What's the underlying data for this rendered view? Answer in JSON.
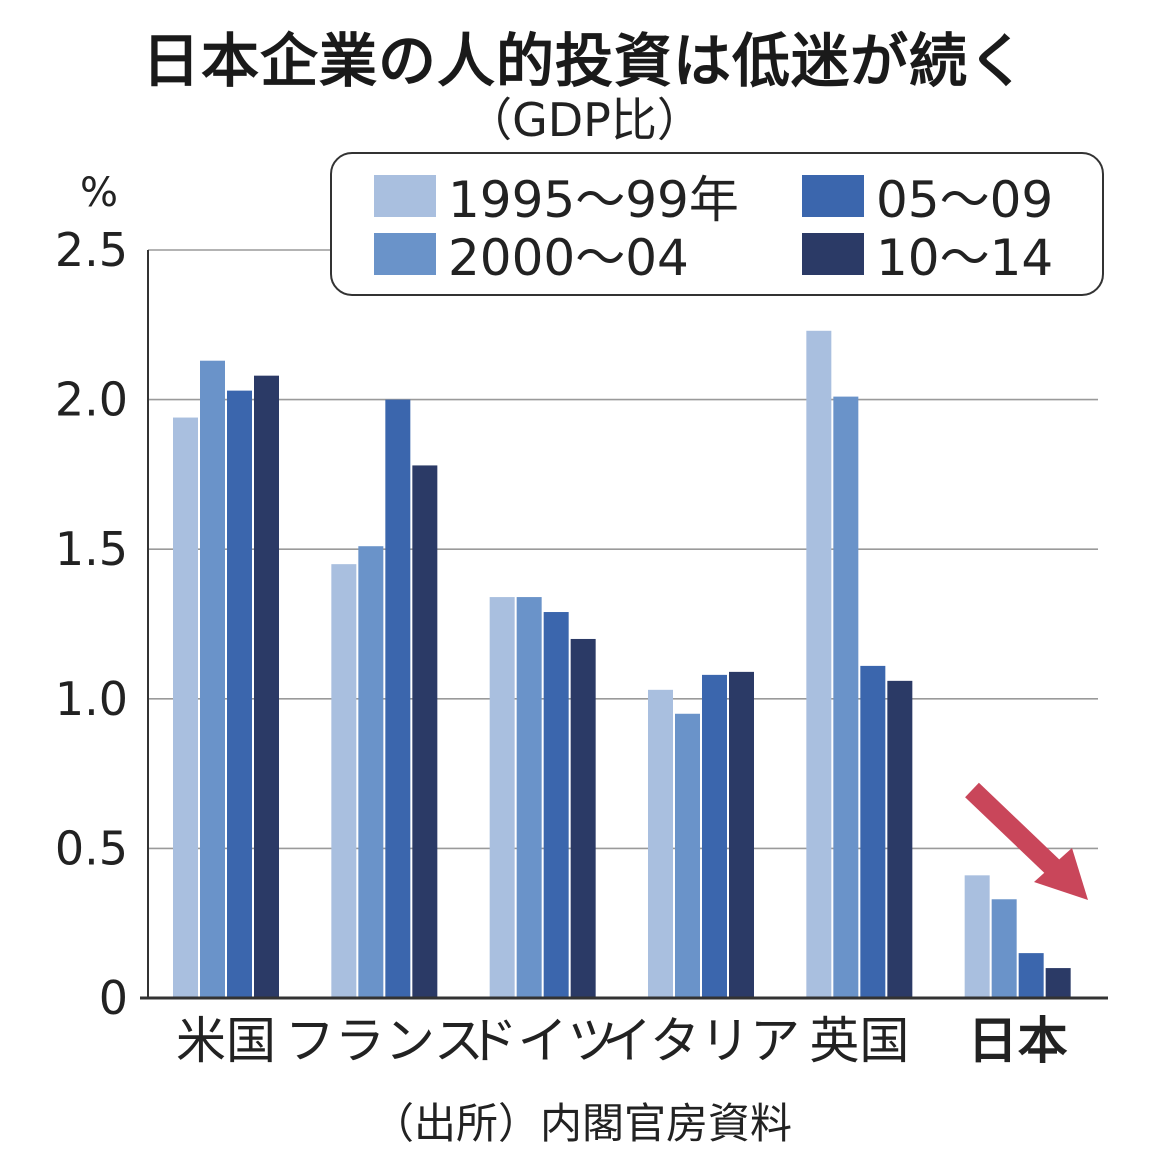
{
  "title": "日本企業の人的投資は低迷が続く",
  "subtitle": "（GDP比）",
  "source": "（出所）内閣官房資料",
  "colors": {
    "s1": "#a9bfdf",
    "s2": "#6a93c9",
    "s3": "#3b66ad",
    "s4": "#2b3a66",
    "arrow": "#c9465a",
    "grid": "#9a9a9a",
    "axis": "#333333"
  },
  "chart_data": {
    "type": "bar",
    "title": "日本企業の人的投資は低迷が続く",
    "subtitle": "（GDP比）",
    "ylabel": "%",
    "ylim": [
      0,
      2.5
    ],
    "yticks": [
      0,
      0.5,
      1.0,
      1.5,
      2.0,
      2.5
    ],
    "ytick_labels": [
      "0",
      "0.5",
      "1.0",
      "1.5",
      "2.0",
      "2.5"
    ],
    "grid": true,
    "legend_position": "top-right",
    "categories": [
      "米国",
      "フランス",
      "ドイツ",
      "イタリア",
      "英国",
      "日本"
    ],
    "highlight_category": "日本",
    "series": [
      {
        "name": "1995〜99年",
        "values": [
          1.94,
          1.45,
          1.34,
          1.03,
          2.23,
          0.41
        ]
      },
      {
        "name": "2000〜04",
        "values": [
          2.13,
          1.51,
          1.34,
          0.95,
          2.01,
          0.33
        ]
      },
      {
        "name": "05〜09",
        "values": [
          2.03,
          2.0,
          1.29,
          1.08,
          1.11,
          0.15
        ]
      },
      {
        "name": "10〜14",
        "values": [
          2.08,
          1.78,
          1.2,
          1.09,
          1.06,
          0.1
        ]
      }
    ],
    "annotation": "down-arrow-icon"
  }
}
